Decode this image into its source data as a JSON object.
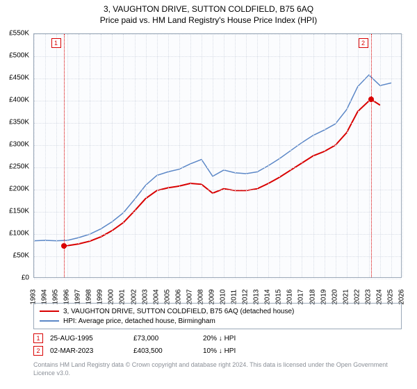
{
  "title": "3, VAUGHTON DRIVE, SUTTON COLDFIELD, B75 6AQ",
  "subtitle": "Price paid vs. HM Land Registry's House Price Index (HPI)",
  "chart": {
    "type": "line",
    "background_color": "#fbfcfe",
    "grid_color": "#d8dde6",
    "axis_color": "#9aa8b8",
    "x_min": 1993,
    "x_max": 2026,
    "x_ticks": [
      1993,
      1994,
      1995,
      1996,
      1997,
      1998,
      1999,
      2000,
      2001,
      2002,
      2003,
      2004,
      2005,
      2006,
      2007,
      2008,
      2009,
      2010,
      2011,
      2012,
      2013,
      2014,
      2015,
      2016,
      2017,
      2018,
      2019,
      2020,
      2021,
      2022,
      2023,
      2024,
      2025,
      2026
    ],
    "y_min": 0,
    "y_max": 550000,
    "y_ticks": [
      0,
      50000,
      100000,
      150000,
      200000,
      250000,
      300000,
      350000,
      400000,
      450000,
      500000,
      550000
    ],
    "y_tick_labels": [
      "£0",
      "£50K",
      "£100K",
      "£150K",
      "£200K",
      "£250K",
      "£300K",
      "£350K",
      "£400K",
      "£450K",
      "£500K",
      "£550K"
    ],
    "label_fontsize": 10,
    "series": [
      {
        "key": "subject",
        "label": "3, VAUGHTON DRIVE, SUTTON COLDFIELD, B75 6AQ (detached house)",
        "color": "#d90000",
        "line_width": 2,
        "points": [
          [
            1995.65,
            73000
          ],
          [
            1996,
            74000
          ],
          [
            1997,
            78000
          ],
          [
            1998,
            84000
          ],
          [
            1999,
            94000
          ],
          [
            2000,
            108000
          ],
          [
            2001,
            126000
          ],
          [
            2002,
            152000
          ],
          [
            2003,
            180000
          ],
          [
            2004,
            198000
          ],
          [
            2005,
            204000
          ],
          [
            2006,
            208000
          ],
          [
            2007,
            214000
          ],
          [
            2008,
            212000
          ],
          [
            2009,
            192000
          ],
          [
            2010,
            202000
          ],
          [
            2011,
            198000
          ],
          [
            2012,
            198000
          ],
          [
            2013,
            202000
          ],
          [
            2014,
            214000
          ],
          [
            2015,
            228000
          ],
          [
            2016,
            244000
          ],
          [
            2017,
            260000
          ],
          [
            2018,
            276000
          ],
          [
            2019,
            286000
          ],
          [
            2020,
            300000
          ],
          [
            2021,
            328000
          ],
          [
            2022,
            376000
          ],
          [
            2023.17,
            403500
          ],
          [
            2024,
            390000
          ]
        ]
      },
      {
        "key": "hpi",
        "label": "HPI: Average price, detached house, Birmingham",
        "color": "#5b87c7",
        "line_width": 1.5,
        "points": [
          [
            1993,
            85000
          ],
          [
            1994,
            86000
          ],
          [
            1995,
            85000
          ],
          [
            1996,
            86000
          ],
          [
            1997,
            92000
          ],
          [
            1998,
            100000
          ],
          [
            1999,
            112000
          ],
          [
            2000,
            128000
          ],
          [
            2001,
            148000
          ],
          [
            2002,
            178000
          ],
          [
            2003,
            210000
          ],
          [
            2004,
            232000
          ],
          [
            2005,
            240000
          ],
          [
            2006,
            246000
          ],
          [
            2007,
            258000
          ],
          [
            2008,
            268000
          ],
          [
            2009,
            230000
          ],
          [
            2010,
            244000
          ],
          [
            2011,
            238000
          ],
          [
            2012,
            236000
          ],
          [
            2013,
            240000
          ],
          [
            2014,
            254000
          ],
          [
            2015,
            270000
          ],
          [
            2016,
            288000
          ],
          [
            2017,
            306000
          ],
          [
            2018,
            322000
          ],
          [
            2019,
            334000
          ],
          [
            2020,
            348000
          ],
          [
            2021,
            380000
          ],
          [
            2022,
            432000
          ],
          [
            2023,
            458000
          ],
          [
            2024,
            434000
          ],
          [
            2025,
            440000
          ]
        ]
      }
    ],
    "markers": [
      {
        "num": "1",
        "x": 1995.65,
        "y": 73000
      },
      {
        "num": "2",
        "x": 2023.17,
        "y": 403500
      }
    ]
  },
  "legend": {
    "items": [
      {
        "color": "#d90000",
        "label": "3, VAUGHTON DRIVE, SUTTON COLDFIELD, B75 6AQ (detached house)"
      },
      {
        "color": "#5b87c7",
        "label": "HPI: Average price, detached house, Birmingham"
      }
    ]
  },
  "data_points": [
    {
      "num": "1",
      "date": "25-AUG-1995",
      "price": "£73,000",
      "delta": "20% ↓ HPI"
    },
    {
      "num": "2",
      "date": "02-MAR-2023",
      "price": "£403,500",
      "delta": "10% ↓ HPI"
    }
  ],
  "attribution": "Contains HM Land Registry data © Crown copyright and database right 2024. This data is licensed under the Open Government Licence v3.0."
}
